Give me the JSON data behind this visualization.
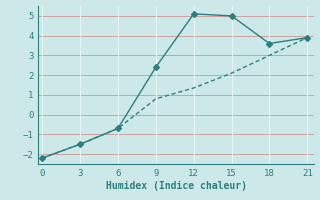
{
  "xlabel": "Humidex (Indice chaleur)",
  "line1_x": [
    0,
    3,
    6,
    9,
    12,
    15,
    18,
    21
  ],
  "line1_y": [
    -2.2,
    -1.5,
    -0.7,
    2.4,
    5.1,
    5.0,
    3.6,
    3.9
  ],
  "line2_x": [
    0,
    3,
    6,
    9,
    12,
    15,
    18,
    21
  ],
  "line2_y": [
    -2.2,
    -1.5,
    -0.7,
    0.8,
    1.35,
    2.1,
    3.0,
    3.9
  ],
  "line_color": "#2d7f7f",
  "bg_color": "#cde8e8",
  "grid_color_h": "#c9a0a0",
  "grid_color_v": "#e8f5f5",
  "xlim": [
    -0.3,
    21.5
  ],
  "ylim": [
    -2.5,
    5.5
  ],
  "xticks": [
    0,
    3,
    6,
    9,
    12,
    15,
    18,
    21
  ],
  "yticks": [
    -2,
    -1,
    0,
    1,
    2,
    3,
    4,
    5
  ],
  "marker": "D",
  "marker_size": 3,
  "linewidth": 1.0
}
